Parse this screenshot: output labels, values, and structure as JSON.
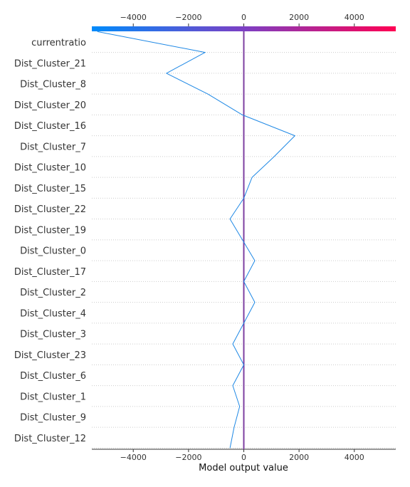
{
  "chart_data": {
    "type": "line",
    "chart_kind": "shap-decision-plot",
    "xlabel": "Model output value",
    "ylabel": "",
    "title": "",
    "xlim": [
      -5500,
      5500
    ],
    "x_ticks": [
      -4000,
      -2000,
      0,
      2000,
      4000
    ],
    "x_tick_labels": [
      "−4000",
      "−2000",
      "0",
      "2000",
      "4000"
    ],
    "base_value": 0,
    "features": [
      "currentratio",
      "Dist_Cluster_21",
      "Dist_Cluster_8",
      "Dist_Cluster_20",
      "Dist_Cluster_16",
      "Dist_Cluster_7",
      "Dist_Cluster_10",
      "Dist_Cluster_15",
      "Dist_Cluster_22",
      "Dist_Cluster_19",
      "Dist_Cluster_0",
      "Dist_Cluster_17",
      "Dist_Cluster_2",
      "Dist_Cluster_4",
      "Dist_Cluster_3",
      "Dist_Cluster_23",
      "Dist_Cluster_6",
      "Dist_Cluster_1",
      "Dist_Cluster_9",
      "Dist_Cluster_12"
    ],
    "series": [
      {
        "values": [
          -5300,
          -1400,
          -2800,
          -1300,
          -50,
          1850,
          1100,
          300,
          0,
          -500,
          -50,
          400,
          0,
          400,
          0,
          -400,
          0,
          -400,
          -150,
          -350,
          -500
        ]
      }
    ],
    "colorbar": {
      "ticks": [
        -4000,
        -2000,
        0,
        2000,
        4000
      ],
      "tick_labels": [
        "−4000",
        "−2000",
        "0",
        "2000",
        "4000"
      ],
      "low_color": "#008bfb",
      "mid_color": "#7c3fc4",
      "high_color": "#ff0052"
    },
    "line_color": "#1e88e5",
    "base_line_color": "#7e3fa0",
    "grid": "horizontal dotted"
  }
}
